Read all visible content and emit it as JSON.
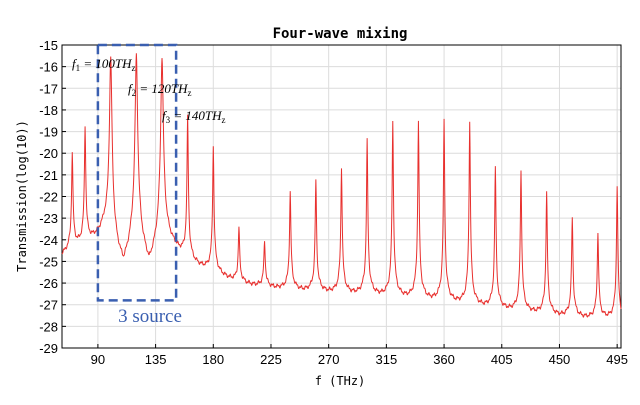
{
  "chart_data": {
    "type": "line",
    "title": "Four-wave mixing",
    "xlabel": "f (THz)",
    "ylabel": "Transmission(log(10))",
    "xlim": [
      62,
      498
    ],
    "ylim": [
      -29,
      -15
    ],
    "xticks": [
      90,
      135,
      180,
      225,
      270,
      315,
      360,
      405,
      450,
      495
    ],
    "yticks": [
      -15,
      -16,
      -17,
      -18,
      -19,
      -20,
      -21,
      -22,
      -23,
      -24,
      -25,
      -26,
      -27,
      -28,
      -29
    ],
    "grid": true,
    "series": [
      {
        "name": "transmission",
        "color": "#e8302e",
        "baseline": [
          [
            62,
            -25.3
          ],
          [
            80,
            -25.1
          ],
          [
            95,
            -24.7
          ],
          [
            100,
            -25.3
          ],
          [
            110,
            -26.5
          ],
          [
            120,
            -25.0
          ],
          [
            130,
            -26.5
          ],
          [
            140,
            -25.0
          ],
          [
            150,
            -25.4
          ],
          [
            160,
            -25.9
          ],
          [
            200,
            -26.6
          ],
          [
            250,
            -27.0
          ],
          [
            300,
            -27.3
          ],
          [
            350,
            -27.6
          ],
          [
            400,
            -27.9
          ],
          [
            450,
            -28.1
          ],
          [
            498,
            -28.2
          ]
        ],
        "peaks": [
          {
            "f": 70,
            "v": -20.6
          },
          {
            "f": 80,
            "v": -19.5
          },
          {
            "f": 100,
            "v": -16.3
          },
          {
            "f": 120,
            "v": -16.3
          },
          {
            "f": 140,
            "v": -16.3
          },
          {
            "f": 160,
            "v": -19.1
          },
          {
            "f": 180,
            "v": -20.3
          },
          {
            "f": 200,
            "v": -24.0
          },
          {
            "f": 220,
            "v": -24.6
          },
          {
            "f": 240,
            "v": -22.3
          },
          {
            "f": 260,
            "v": -21.8
          },
          {
            "f": 280,
            "v": -21.2
          },
          {
            "f": 300,
            "v": -20.0
          },
          {
            "f": 320,
            "v": -19.1
          },
          {
            "f": 340,
            "v": -19.1
          },
          {
            "f": 360,
            "v": -19.1
          },
          {
            "f": 380,
            "v": -19.1
          },
          {
            "f": 400,
            "v": -21.2
          },
          {
            "f": 420,
            "v": -21.3
          },
          {
            "f": 440,
            "v": -22.3
          },
          {
            "f": 460,
            "v": -23.4
          },
          {
            "f": 480,
            "v": -24.1
          },
          {
            "f": 495,
            "v": -21.8
          }
        ]
      }
    ],
    "annotations": [
      {
        "sym": "f",
        "sub": "1",
        "text": " = 100TH",
        "tail": "z"
      },
      {
        "sym": "f",
        "sub": "2",
        "text": " = 120TH",
        "tail": "z"
      },
      {
        "sym": "f",
        "sub": "3",
        "text": " = 140TH",
        "tail": "z"
      }
    ],
    "source_box": {
      "label": "3 source",
      "color": "#3a5fb0",
      "f_range": [
        90,
        151
      ],
      "v_range": [
        -26.8,
        -15
      ]
    }
  }
}
